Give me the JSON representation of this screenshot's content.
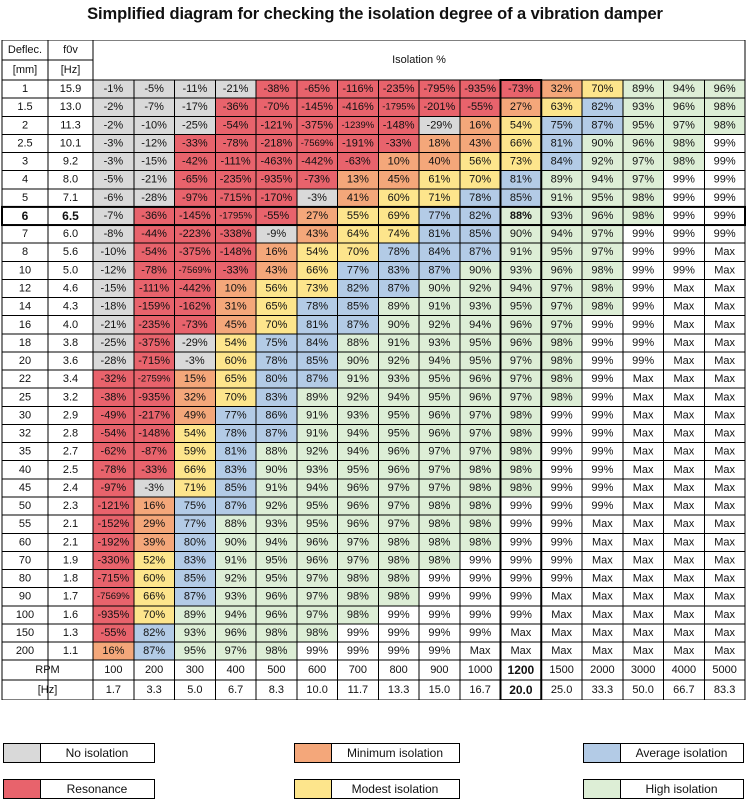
{
  "title": "Simplified diagram for checking the isolation degree of a vibration damper",
  "colors": {
    "none": "#d9d9d9",
    "resonance": "#e8636c",
    "minimum": "#f4a77a",
    "modest": "#fde58c",
    "average": "#b3cbe6",
    "high": "#ddeed6",
    "max": "#ffffff"
  },
  "chart_data": {
    "type": "table",
    "header": {
      "deflection_label": "Deflec.",
      "deflection_unit": "[mm]",
      "f0v_label": "f0v",
      "f0v_unit": "[Hz]",
      "isolation_label": "Isolation %"
    },
    "rpm_label": "RPM",
    "hz_label": "[Hz]",
    "rpm": [
      "100",
      "200",
      "300",
      "400",
      "500",
      "600",
      "700",
      "800",
      "900",
      "1000",
      "1200",
      "1500",
      "2000",
      "3000",
      "4000",
      "5000"
    ],
    "hz": [
      "1.7",
      "3.3",
      "5.0",
      "6.7",
      "8.3",
      "10.0",
      "11.7",
      "13.3",
      "15.0",
      "16.7",
      "20.0",
      "25.0",
      "33.3",
      "50.0",
      "66.7",
      "83.3"
    ],
    "highlight_row": 7,
    "highlight_col": 10,
    "rows": [
      {
        "deflection": "1",
        "f0v": "15.9",
        "values": [
          "-1%",
          "-5%",
          "-11%",
          "-21%",
          "-38%",
          "-65%",
          "-116%",
          "-235%",
          "-795%",
          "-935%",
          "-73%",
          "32%",
          "70%",
          "89%",
          "94%",
          "96%"
        ]
      },
      {
        "deflection": "1.5",
        "f0v": "13.0",
        "values": [
          "-2%",
          "-7%",
          "-17%",
          "-36%",
          "-70%",
          "-145%",
          "-416%",
          "-1795%",
          "-201%",
          "-55%",
          "27%",
          "63%",
          "82%",
          "93%",
          "96%",
          "98%"
        ]
      },
      {
        "deflection": "2",
        "f0v": "11.3",
        "values": [
          "-2%",
          "-10%",
          "-25%",
          "-54%",
          "-121%",
          "-375%",
          "-1239%",
          "-148%",
          "-29%",
          "16%",
          "54%",
          "75%",
          "87%",
          "95%",
          "97%",
          "98%"
        ]
      },
      {
        "deflection": "2.5",
        "f0v": "10.1",
        "values": [
          "-3%",
          "-12%",
          "-33%",
          "-78%",
          "-218%",
          "-7569%",
          "-191%",
          "-33%",
          "18%",
          "43%",
          "66%",
          "81%",
          "90%",
          "96%",
          "98%",
          "99%"
        ]
      },
      {
        "deflection": "3",
        "f0v": "9.2",
        "values": [
          "-3%",
          "-15%",
          "-42%",
          "-111%",
          "-463%",
          "-442%",
          "-63%",
          "10%",
          "40%",
          "56%",
          "73%",
          "84%",
          "92%",
          "97%",
          "98%",
          "99%"
        ]
      },
      {
        "deflection": "4",
        "f0v": "8.0",
        "values": [
          "-5%",
          "-21%",
          "-65%",
          "-235%",
          "-935%",
          "-73%",
          "13%",
          "45%",
          "61%",
          "70%",
          "81%",
          "89%",
          "94%",
          "97%",
          "99%",
          "99%"
        ]
      },
      {
        "deflection": "5",
        "f0v": "7.1",
        "values": [
          "-6%",
          "-28%",
          "-97%",
          "-715%",
          "-170%",
          "-3%",
          "41%",
          "60%",
          "71%",
          "78%",
          "85%",
          "91%",
          "95%",
          "98%",
          "99%",
          "99%"
        ]
      },
      {
        "deflection": "6",
        "f0v": "6.5",
        "values": [
          "-7%",
          "-36%",
          "-145%",
          "-1795%",
          "-55%",
          "27%",
          "55%",
          "69%",
          "77%",
          "82%",
          "88%",
          "93%",
          "96%",
          "98%",
          "99%",
          "99%"
        ]
      },
      {
        "deflection": "7",
        "f0v": "6.0",
        "values": [
          "-8%",
          "-44%",
          "-223%",
          "-338%",
          "-9%",
          "43%",
          "64%",
          "74%",
          "81%",
          "85%",
          "90%",
          "94%",
          "97%",
          "99%",
          "99%",
          "99%"
        ]
      },
      {
        "deflection": "8",
        "f0v": "5.6",
        "values": [
          "-10%",
          "-54%",
          "-375%",
          "-148%",
          "16%",
          "54%",
          "70%",
          "78%",
          "84%",
          "87%",
          "91%",
          "95%",
          "97%",
          "99%",
          "99%",
          "Max"
        ]
      },
      {
        "deflection": "10",
        "f0v": "5.0",
        "values": [
          "-12%",
          "-78%",
          "-7569%",
          "-33%",
          "43%",
          "66%",
          "77%",
          "83%",
          "87%",
          "90%",
          "93%",
          "96%",
          "98%",
          "99%",
          "99%",
          "Max"
        ]
      },
      {
        "deflection": "12",
        "f0v": "4.6",
        "values": [
          "-15%",
          "-111%",
          "-442%",
          "10%",
          "56%",
          "73%",
          "82%",
          "87%",
          "90%",
          "92%",
          "94%",
          "97%",
          "98%",
          "99%",
          "Max",
          "Max"
        ]
      },
      {
        "deflection": "14",
        "f0v": "4.3",
        "values": [
          "-18%",
          "-159%",
          "-162%",
          "31%",
          "65%",
          "78%",
          "85%",
          "89%",
          "91%",
          "93%",
          "95%",
          "97%",
          "98%",
          "99%",
          "Max",
          "Max"
        ]
      },
      {
        "deflection": "16",
        "f0v": "4.0",
        "values": [
          "-21%",
          "-235%",
          "-73%",
          "45%",
          "70%",
          "81%",
          "87%",
          "90%",
          "92%",
          "94%",
          "96%",
          "97%",
          "99%",
          "99%",
          "Max",
          "Max"
        ]
      },
      {
        "deflection": "18",
        "f0v": "3.8",
        "values": [
          "-25%",
          "-375%",
          "-29%",
          "54%",
          "75%",
          "84%",
          "88%",
          "91%",
          "93%",
          "95%",
          "96%",
          "98%",
          "99%",
          "99%",
          "Max",
          "Max"
        ]
      },
      {
        "deflection": "20",
        "f0v": "3.6",
        "values": [
          "-28%",
          "-715%",
          "-3%",
          "60%",
          "78%",
          "85%",
          "90%",
          "92%",
          "94%",
          "95%",
          "97%",
          "98%",
          "99%",
          "99%",
          "Max",
          "Max"
        ]
      },
      {
        "deflection": "22",
        "f0v": "3.4",
        "values": [
          "-32%",
          "-2759%",
          "15%",
          "65%",
          "80%",
          "87%",
          "91%",
          "93%",
          "95%",
          "96%",
          "97%",
          "98%",
          "99%",
          "Max",
          "Max",
          "Max"
        ]
      },
      {
        "deflection": "25",
        "f0v": "3.2",
        "values": [
          "-38%",
          "-935%",
          "32%",
          "70%",
          "83%",
          "89%",
          "92%",
          "94%",
          "95%",
          "96%",
          "97%",
          "98%",
          "99%",
          "Max",
          "Max",
          "Max"
        ]
      },
      {
        "deflection": "30",
        "f0v": "2.9",
        "values": [
          "-49%",
          "-217%",
          "49%",
          "77%",
          "86%",
          "91%",
          "93%",
          "95%",
          "96%",
          "97%",
          "98%",
          "99%",
          "99%",
          "Max",
          "Max",
          "Max"
        ]
      },
      {
        "deflection": "32",
        "f0v": "2.8",
        "values": [
          "-54%",
          "-148%",
          "54%",
          "78%",
          "87%",
          "91%",
          "94%",
          "95%",
          "96%",
          "97%",
          "98%",
          "99%",
          "99%",
          "Max",
          "Max",
          "Max"
        ]
      },
      {
        "deflection": "35",
        "f0v": "2.7",
        "values": [
          "-62%",
          "-87%",
          "59%",
          "81%",
          "88%",
          "92%",
          "94%",
          "96%",
          "97%",
          "97%",
          "98%",
          "99%",
          "99%",
          "Max",
          "Max",
          "Max"
        ]
      },
      {
        "deflection": "40",
        "f0v": "2.5",
        "values": [
          "-78%",
          "-33%",
          "66%",
          "83%",
          "90%",
          "93%",
          "95%",
          "96%",
          "97%",
          "98%",
          "98%",
          "99%",
          "99%",
          "Max",
          "Max",
          "Max"
        ]
      },
      {
        "deflection": "45",
        "f0v": "2.4",
        "values": [
          "-97%",
          "-3%",
          "71%",
          "85%",
          "91%",
          "94%",
          "96%",
          "97%",
          "97%",
          "98%",
          "98%",
          "99%",
          "99%",
          "Max",
          "Max",
          "Max"
        ]
      },
      {
        "deflection": "50",
        "f0v": "2.3",
        "values": [
          "-121%",
          "16%",
          "75%",
          "87%",
          "92%",
          "95%",
          "96%",
          "97%",
          "98%",
          "98%",
          "99%",
          "99%",
          "99%",
          "Max",
          "Max",
          "Max"
        ]
      },
      {
        "deflection": "55",
        "f0v": "2.1",
        "values": [
          "-152%",
          "29%",
          "77%",
          "88%",
          "93%",
          "95%",
          "96%",
          "97%",
          "98%",
          "98%",
          "99%",
          "99%",
          "Max",
          "Max",
          "Max",
          "Max"
        ]
      },
      {
        "deflection": "60",
        "f0v": "2.1",
        "values": [
          "-192%",
          "39%",
          "80%",
          "90%",
          "94%",
          "96%",
          "97%",
          "98%",
          "98%",
          "98%",
          "99%",
          "99%",
          "Max",
          "Max",
          "Max",
          "Max"
        ]
      },
      {
        "deflection": "70",
        "f0v": "1.9",
        "values": [
          "-330%",
          "52%",
          "83%",
          "91%",
          "95%",
          "96%",
          "97%",
          "98%",
          "98%",
          "99%",
          "99%",
          "99%",
          "Max",
          "Max",
          "Max",
          "Max"
        ]
      },
      {
        "deflection": "80",
        "f0v": "1.8",
        "values": [
          "-715%",
          "60%",
          "85%",
          "92%",
          "95%",
          "97%",
          "98%",
          "98%",
          "99%",
          "99%",
          "99%",
          "99%",
          "Max",
          "Max",
          "Max",
          "Max"
        ]
      },
      {
        "deflection": "90",
        "f0v": "1.7",
        "values": [
          "-7569%",
          "66%",
          "87%",
          "93%",
          "96%",
          "97%",
          "98%",
          "98%",
          "99%",
          "99%",
          "99%",
          "Max",
          "Max",
          "Max",
          "Max",
          "Max"
        ]
      },
      {
        "deflection": "100",
        "f0v": "1.6",
        "values": [
          "-935%",
          "70%",
          "89%",
          "94%",
          "96%",
          "97%",
          "98%",
          "99%",
          "99%",
          "99%",
          "99%",
          "Max",
          "Max",
          "Max",
          "Max",
          "Max"
        ]
      },
      {
        "deflection": "150",
        "f0v": "1.3",
        "values": [
          "-55%",
          "82%",
          "93%",
          "96%",
          "98%",
          "98%",
          "99%",
          "99%",
          "99%",
          "99%",
          "Max",
          "Max",
          "Max",
          "Max",
          "Max",
          "Max"
        ]
      },
      {
        "deflection": "200",
        "f0v": "1.1",
        "values": [
          "16%",
          "87%",
          "95%",
          "97%",
          "98%",
          "99%",
          "99%",
          "99%",
          "99%",
          "Max",
          "Max",
          "Max",
          "Max",
          "Max",
          "Max",
          "Max"
        ]
      }
    ]
  },
  "legend": [
    {
      "key": "none",
      "label": "No isolation"
    },
    {
      "key": "minimum",
      "label": "Minimum isolation"
    },
    {
      "key": "average",
      "label": "Average isolation"
    },
    {
      "key": "resonance",
      "label": "Resonance"
    },
    {
      "key": "modest",
      "label": "Modest isolation"
    },
    {
      "key": "high",
      "label": "High isolation"
    }
  ]
}
